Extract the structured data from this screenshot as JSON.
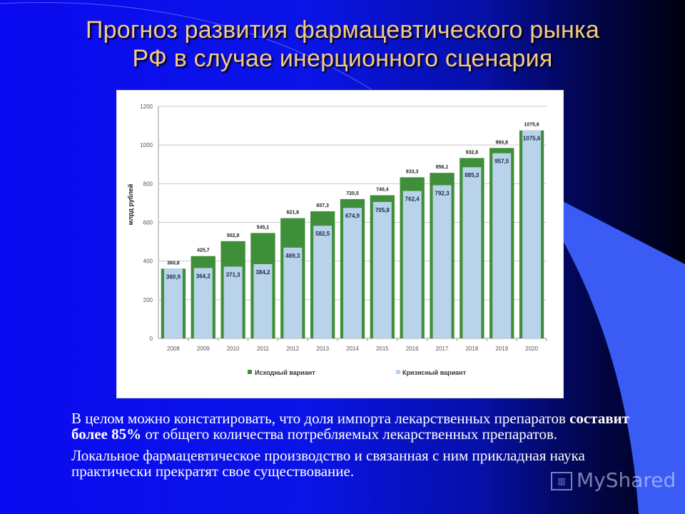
{
  "slide": {
    "title_line1": "Прогноз развития фармацевтического  рынка",
    "title_line2": "РФ в случае инерционного сценария",
    "paragraph1_part1": "В целом можно констатировать, что доля импорта лекарственных препаратов ",
    "paragraph1_bold": "составит более 85%",
    "paragraph1_part2": " от общего количества потребляемых лекарственных препаратов.",
    "paragraph2": "Локальное фармацевтическое производство и связанная с ним прикладная наука практически прекратят свое существование.",
    "watermark": "MyShared",
    "watermark_icon": "presentation-board-icon"
  },
  "colors": {
    "series_base": "#3f8f3a",
    "series_crisis": "#b9d3ea",
    "title": "#f2c98a"
  },
  "chart_data": {
    "type": "bar",
    "title": "",
    "xlabel": "",
    "ylabel": "млрд рублей",
    "ylim": [
      0,
      1200
    ],
    "yticks": [
      0,
      200,
      400,
      600,
      800,
      1000,
      1200
    ],
    "grid": true,
    "legend_position": "bottom",
    "categories": [
      "2008",
      "2009",
      "2010",
      "2011",
      "2012",
      "2013",
      "2014",
      "2015",
      "2016",
      "2017",
      "2018",
      "2019",
      "2020"
    ],
    "series": [
      {
        "name": "Исходный вариант",
        "values": [
          360.8,
          425.7,
          502.8,
          545.1,
          621.8,
          657.3,
          720.5,
          740.4,
          833.3,
          856.1,
          932.8,
          984.8,
          1075.6
        ],
        "labels": [
          "360,8",
          "425,7",
          "502,8",
          "545,1",
          "621,8",
          "657,3",
          "720,5",
          "740,4",
          "833,3",
          "856,1",
          "932,8",
          "984,8",
          "1075,6"
        ]
      },
      {
        "name": "Кризисный вариант",
        "values": [
          360.9,
          364.2,
          371.3,
          384.2,
          469.3,
          582.5,
          674.9,
          705.8,
          762.4,
          792.3,
          885.3,
          957.5,
          1075.6
        ],
        "labels": [
          "360,9",
          "364,2",
          "371,3",
          "384,2",
          "469,3",
          "582,5",
          "674,9",
          "705,8",
          "762,4",
          "792,3",
          "885,3",
          "957,5",
          "1075,6"
        ]
      }
    ]
  }
}
